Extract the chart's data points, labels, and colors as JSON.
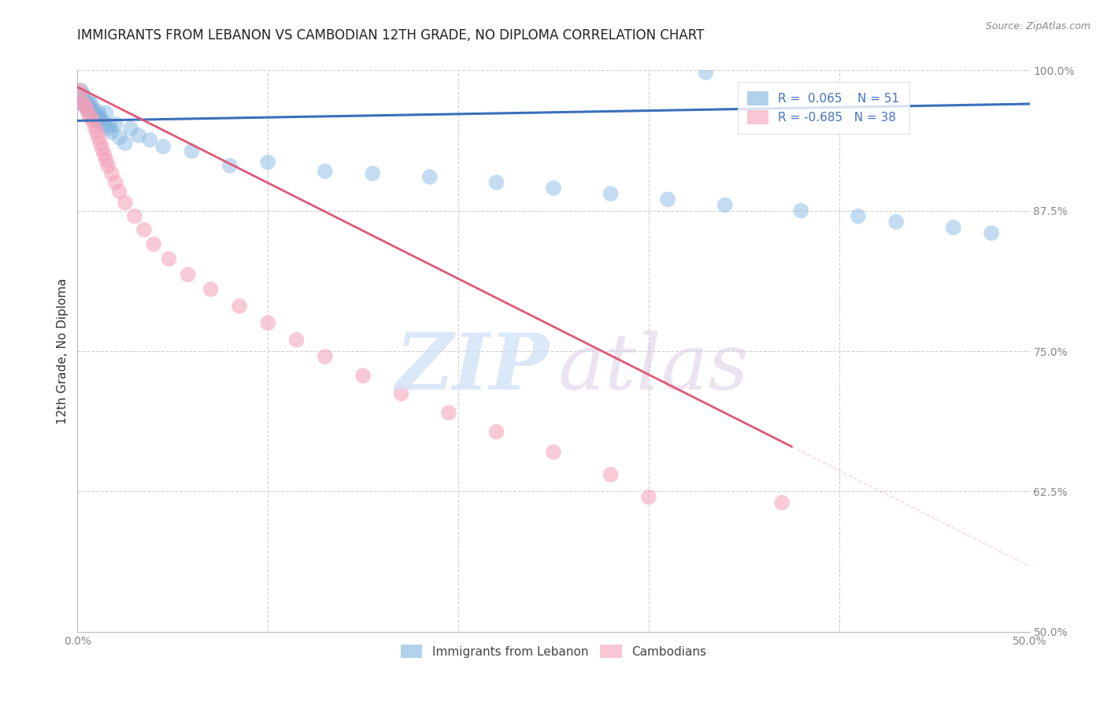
{
  "title": "IMMIGRANTS FROM LEBANON VS CAMBODIAN 12TH GRADE, NO DIPLOMA CORRELATION CHART",
  "source": "Source: ZipAtlas.com",
  "ylabel": "12th Grade, No Diploma",
  "legend_label_blue": "Immigrants from Lebanon",
  "legend_label_pink": "Cambodians",
  "R_blue": 0.065,
  "N_blue": 51,
  "R_pink": -0.685,
  "N_pink": 38,
  "xlim": [
    0.0,
    0.5
  ],
  "ylim": [
    0.5,
    1.0
  ],
  "xticks": [
    0.0,
    0.1,
    0.2,
    0.3,
    0.4,
    0.5
  ],
  "yticks": [
    0.5,
    0.625,
    0.75,
    0.875,
    1.0
  ],
  "blue_color": "#7eb3e0",
  "pink_color": "#f4a0b8",
  "blue_line_color": "#3a6fba",
  "pink_line_color": "#e05878",
  "watermark_zip_color": "#ccdff5",
  "watermark_atlas_color": "#d8c8e0",
  "title_color": "#222222",
  "source_color": "#888888",
  "ylabel_color": "#333333",
  "tick_color_y": "#4472c4",
  "tick_color_x": "#555555",
  "grid_color": "#cccccc",
  "blue_scatter_x": [
    0.001,
    0.002,
    0.003,
    0.003,
    0.004,
    0.004,
    0.005,
    0.005,
    0.006,
    0.006,
    0.007,
    0.007,
    0.008,
    0.008,
    0.009,
    0.009,
    0.01,
    0.01,
    0.011,
    0.011,
    0.012,
    0.013,
    0.014,
    0.015,
    0.016,
    0.017,
    0.018,
    0.02,
    0.022,
    0.025,
    0.028,
    0.032,
    0.038,
    0.045,
    0.06,
    0.08,
    0.1,
    0.13,
    0.155,
    0.185,
    0.22,
    0.25,
    0.28,
    0.31,
    0.34,
    0.38,
    0.41,
    0.43,
    0.46,
    0.48,
    0.33
  ],
  "blue_scatter_y": [
    0.975,
    0.982,
    0.97,
    0.978,
    0.968,
    0.972,
    0.965,
    0.971,
    0.968,
    0.973,
    0.97,
    0.964,
    0.966,
    0.961,
    0.962,
    0.958,
    0.96,
    0.955,
    0.957,
    0.963,
    0.958,
    0.955,
    0.952,
    0.962,
    0.948,
    0.95,
    0.945,
    0.952,
    0.94,
    0.935,
    0.948,
    0.942,
    0.938,
    0.932,
    0.928,
    0.915,
    0.918,
    0.91,
    0.908,
    0.905,
    0.9,
    0.895,
    0.89,
    0.885,
    0.88,
    0.875,
    0.87,
    0.865,
    0.86,
    0.855,
    0.998
  ],
  "pink_scatter_x": [
    0.001,
    0.002,
    0.003,
    0.004,
    0.005,
    0.006,
    0.007,
    0.008,
    0.009,
    0.01,
    0.011,
    0.012,
    0.013,
    0.014,
    0.015,
    0.016,
    0.018,
    0.02,
    0.022,
    0.025,
    0.03,
    0.035,
    0.04,
    0.048,
    0.058,
    0.07,
    0.085,
    0.1,
    0.115,
    0.13,
    0.15,
    0.17,
    0.195,
    0.22,
    0.25,
    0.28,
    0.37,
    0.3
  ],
  "pink_scatter_y": [
    0.982,
    0.975,
    0.97,
    0.968,
    0.965,
    0.96,
    0.958,
    0.955,
    0.95,
    0.945,
    0.94,
    0.935,
    0.93,
    0.925,
    0.92,
    0.915,
    0.908,
    0.9,
    0.892,
    0.882,
    0.87,
    0.858,
    0.845,
    0.832,
    0.818,
    0.805,
    0.79,
    0.775,
    0.76,
    0.745,
    0.728,
    0.712,
    0.695,
    0.678,
    0.66,
    0.64,
    0.615,
    0.62
  ],
  "blue_line_x0": 0.0,
  "blue_line_x1": 0.5,
  "blue_line_y0": 0.955,
  "blue_line_y1": 0.97,
  "pink_line_x0": 0.0,
  "pink_line_x1": 0.375,
  "pink_line_y0": 0.985,
  "pink_line_y1": 0.665,
  "title_fontsize": 12,
  "axis_label_fontsize": 11,
  "tick_fontsize": 10,
  "legend_fontsize": 11
}
